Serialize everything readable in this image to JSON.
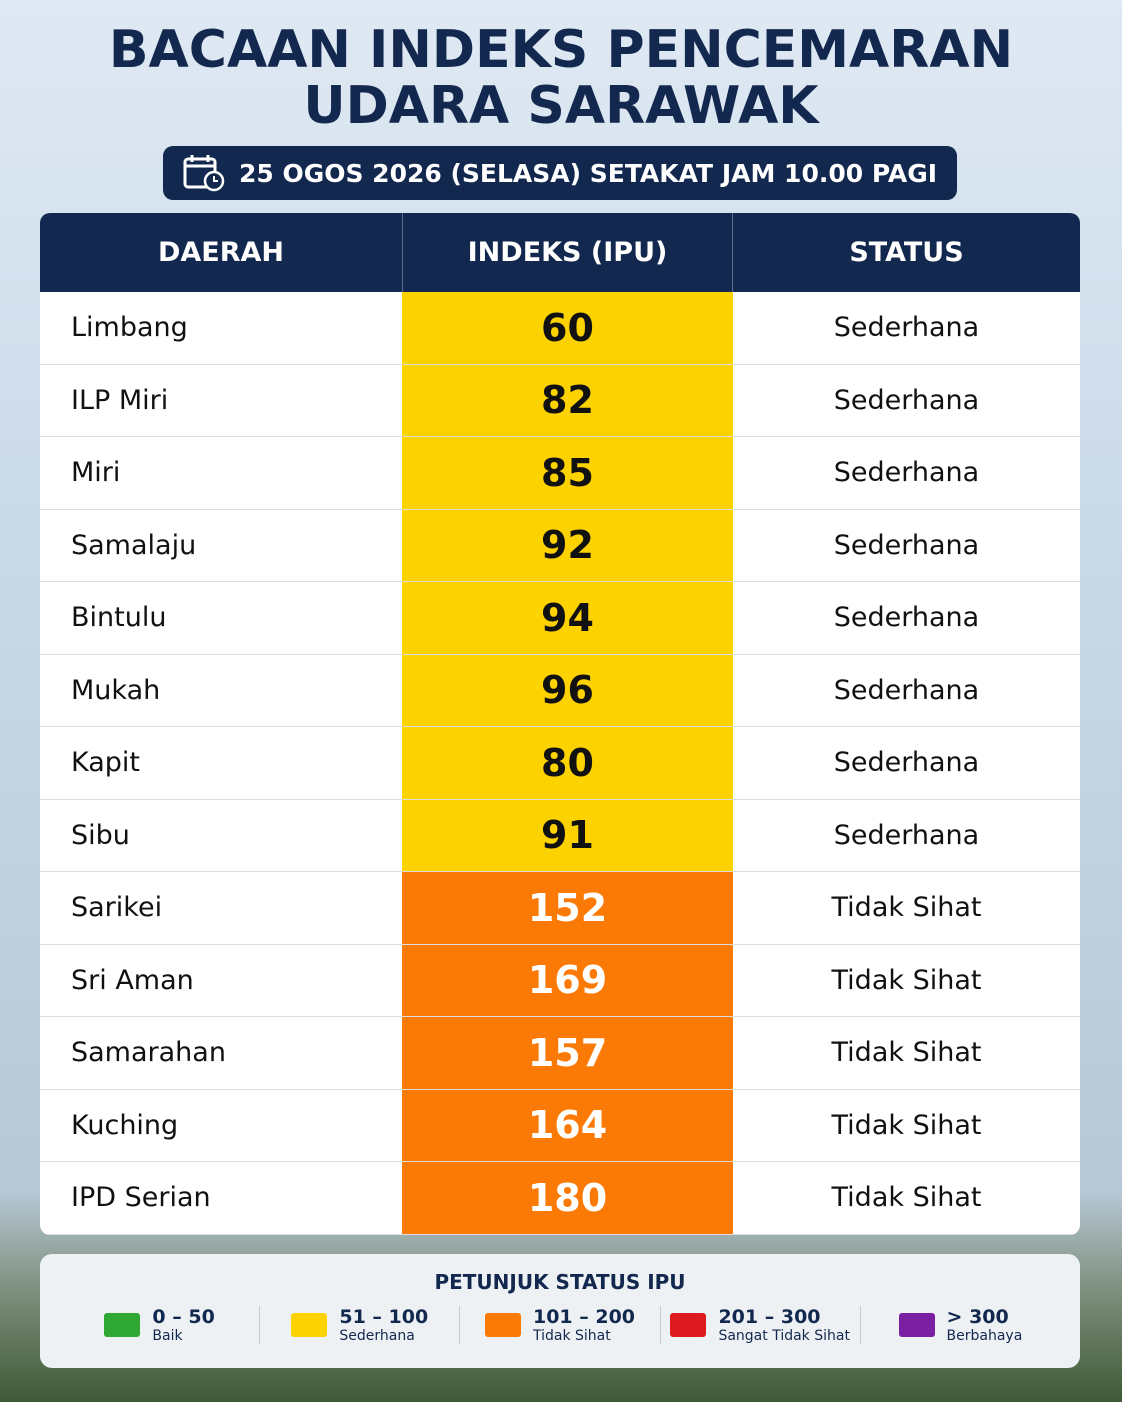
{
  "header": {
    "title": [
      "BACAAN INDEKS PENCEMARAN",
      "UDARA SARAWAK"
    ],
    "date": "25 OGOS 2026 (SELASA) SETAKAT JAM 10.00 PAGI"
  },
  "table": {
    "columns": [
      "DAERAH",
      "INDEKS (IPU)",
      "STATUS"
    ],
    "rows": [
      {
        "area": "Limbang",
        "index": "60",
        "status": "Sederhana",
        "cell_color": "#fcd200",
        "text_color": "#111111"
      },
      {
        "area": "ILP Miri",
        "index": "82",
        "status": "Sederhana",
        "cell_color": "#fcd200",
        "text_color": "#111111"
      },
      {
        "area": "Miri",
        "index": "85",
        "status": "Sederhana",
        "cell_color": "#fcd200",
        "text_color": "#111111"
      },
      {
        "area": "Samalaju",
        "index": "92",
        "status": "Sederhana",
        "cell_color": "#fcd200",
        "text_color": "#111111"
      },
      {
        "area": "Bintulu",
        "index": "94",
        "status": "Sederhana",
        "cell_color": "#fcd200",
        "text_color": "#111111"
      },
      {
        "area": "Mukah",
        "index": "96",
        "status": "Sederhana",
        "cell_color": "#fcd200",
        "text_color": "#111111"
      },
      {
        "area": "Kapit",
        "index": "80",
        "status": "Sederhana",
        "cell_color": "#fcd200",
        "text_color": "#111111"
      },
      {
        "area": "Sibu",
        "index": "91",
        "status": "Sederhana",
        "cell_color": "#fcd200",
        "text_color": "#111111"
      },
      {
        "area": "Sarikei",
        "index": "152",
        "status": "Tidak Sihat",
        "cell_color": "#fb7a05",
        "text_color": "#ffffff"
      },
      {
        "area": "Sri Aman",
        "index": "169",
        "status": "Tidak Sihat",
        "cell_color": "#fb7a05",
        "text_color": "#ffffff"
      },
      {
        "area": "Samarahan",
        "index": "157",
        "status": "Tidak Sihat",
        "cell_color": "#fb7a05",
        "text_color": "#ffffff"
      },
      {
        "area": "Kuching",
        "index": "164",
        "status": "Tidak Sihat",
        "cell_color": "#fb7a05",
        "text_color": "#ffffff"
      },
      {
        "area": "IPD Serian",
        "index": "180",
        "status": "Tidak Sihat",
        "cell_color": "#fb7a05",
        "text_color": "#ffffff"
      }
    ]
  },
  "legend": {
    "title": "PETUNJUK STATUS IPU",
    "items": [
      {
        "range": "0 – 50",
        "label": "Baik",
        "color": "#2ea832"
      },
      {
        "range": "51 – 100",
        "label": "Sederhana",
        "color": "#fcd200"
      },
      {
        "range": "101 – 200",
        "label": "Tidak Sihat",
        "color": "#fb7a05"
      },
      {
        "range": "201 – 300",
        "label": "Sangat Tidak Sihat",
        "color": "#dc1a1f"
      },
      {
        "range": "> 300",
        "label": "Berbahaya",
        "color": "#7b1fa2"
      }
    ]
  }
}
